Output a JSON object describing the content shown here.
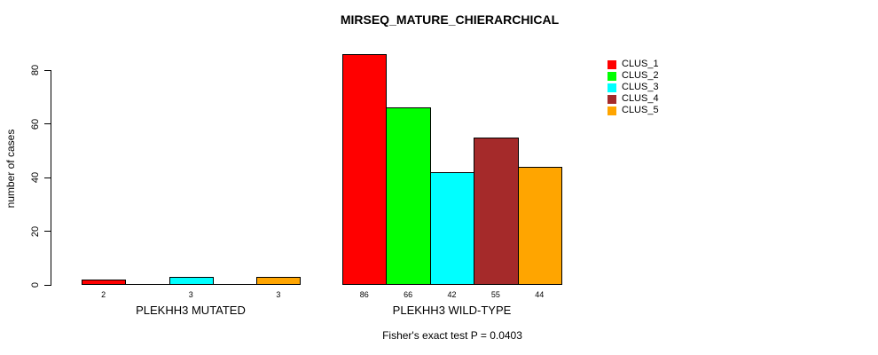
{
  "chart_data": {
    "type": "bar",
    "title": "MIRSEQ_MATURE_CHIERARCHICAL",
    "ylabel": "number of cases",
    "ylim": [
      0,
      80
    ],
    "yticks": [
      0,
      20,
      40,
      60,
      80
    ],
    "grid": false,
    "legend_position": "right",
    "series": [
      {
        "name": "CLUS_1",
        "color": "#FF0000"
      },
      {
        "name": "CLUS_2",
        "color": "#00FF00"
      },
      {
        "name": "CLUS_3",
        "color": "#00FFFF"
      },
      {
        "name": "CLUS_4",
        "color": "#A52A2A"
      },
      {
        "name": "CLUS_5",
        "color": "#FFA500"
      }
    ],
    "groups": [
      {
        "label": "PLEKHH3 MUTATED",
        "values": [
          2,
          0,
          3,
          0,
          3
        ],
        "bar_labels": [
          "2",
          "",
          "3",
          "",
          "3"
        ]
      },
      {
        "label": "PLEKHH3 WILD-TYPE",
        "values": [
          86,
          66,
          42,
          55,
          44
        ],
        "bar_labels": [
          "86",
          "66",
          "42",
          "55",
          "44"
        ]
      }
    ],
    "annotation": "Fisher's exact test P = 0.0403"
  }
}
